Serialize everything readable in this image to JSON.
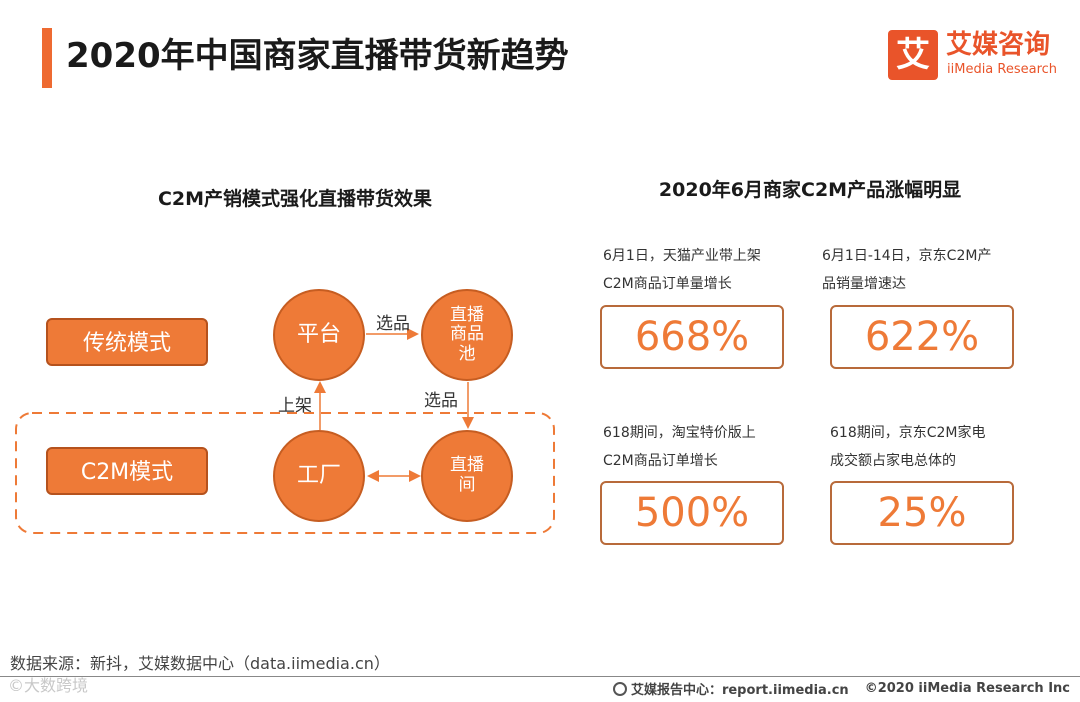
{
  "header": {
    "title": "2020年中国商家直播带货新趋势",
    "logo_mark": "艾",
    "logo_cn": "艾媒咨询",
    "logo_en": "iiMedia Research"
  },
  "left_panel": {
    "title": "C2M产销模式强化直播带货效果",
    "models": {
      "traditional": "传统模式",
      "c2m": "C2M模式"
    },
    "nodes": {
      "platform": "平台",
      "live_pool": [
        "直播",
        "商品",
        "池"
      ],
      "factory": "工厂",
      "live_room": [
        "直播",
        "间"
      ]
    },
    "edges": {
      "select_top": "选品",
      "select_right": "选品",
      "shelve": "上架"
    }
  },
  "right_panel": {
    "title": "2020年6月商家C2M产品涨幅明显",
    "stats": [
      {
        "caption": [
          "6月1日，天猫产业带上架",
          "C2M商品订单量增长"
        ],
        "value": "668%"
      },
      {
        "caption": [
          "6月1日-14日，京东C2M产",
          "品销量增速达"
        ],
        "value": "622%"
      },
      {
        "caption": [
          "618期间，淘宝特价版上",
          "C2M商品订单增长"
        ],
        "value": "500%"
      },
      {
        "caption": [
          "618期间，京东C2M家电",
          "成交额占家电总体的"
        ],
        "value": "25%"
      }
    ]
  },
  "footer": {
    "source": "数据来源：新抖，艾媒数据中心（data.iimedia.cn）",
    "watermark": "©大数跨境",
    "report_center": "艾媒报告中心：report.iimedia.cn",
    "copyright": "©2020  iiMedia Research  Inc"
  },
  "colors": {
    "accent": "#ee6a31",
    "node_fill": "#ee7a37",
    "stat_border": "#b86a3a"
  }
}
